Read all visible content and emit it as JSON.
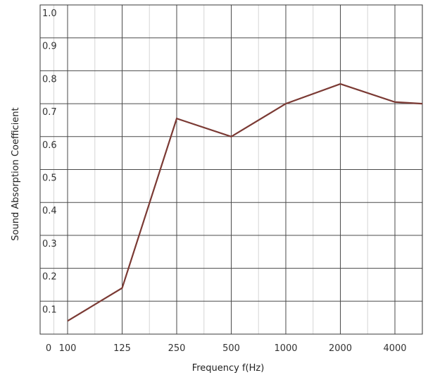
{
  "chart_data": {
    "type": "line",
    "xlabel": "Frequency f(Hz)",
    "ylabel": "Sound Absorption Coefficient",
    "origin_label": "0",
    "categories": [
      "100",
      "125",
      "250",
      "500",
      "1000",
      "2000",
      "4000"
    ],
    "y_ticks": [
      "0.1",
      "0.2",
      "0.3",
      "0.4",
      "0.5",
      "0.6",
      "0.7",
      "0.8",
      "0.9",
      "1.0"
    ],
    "ylim": [
      0,
      1.0
    ],
    "grid": true,
    "series": [
      {
        "values": [
          0.04,
          0.14,
          0.655,
          0.6,
          0.7,
          0.76,
          0.705
        ],
        "end_value": 0.7,
        "color": "#7b3a34"
      }
    ]
  }
}
